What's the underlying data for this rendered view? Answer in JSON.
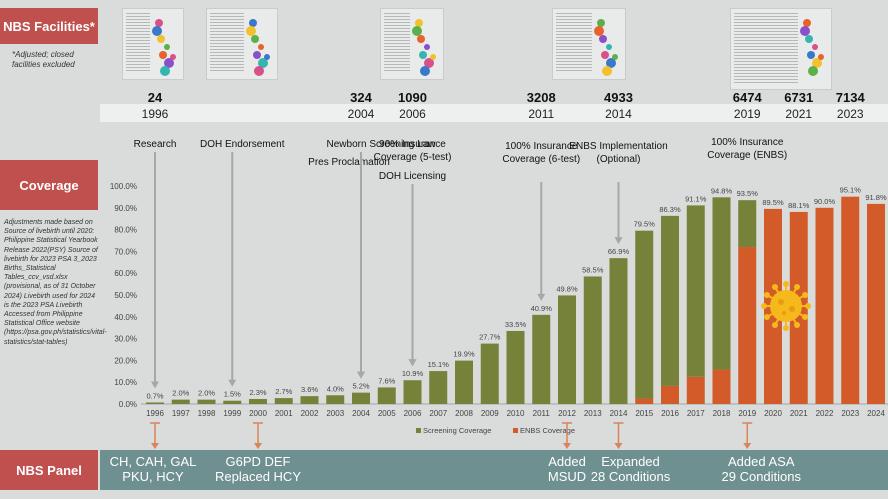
{
  "facilities_label": "NBS Facilities*",
  "facilities_note": "*Adjusted; closed facilities excluded",
  "coverage_label": "Coverage",
  "panel_label": "NBS Panel",
  "adjust_note": "Adjustments made based on Source of livebirth until 2020: Philippine Statistical Yearbook Release 2022(PSY) Source of livebirth for 2023 PSA 3_2023 Births_Statistical Tables_ccv_vsd.xlsx (provisional, as of 31 October 2024) Livebirth used for 2024 is the 2023 PSA Livebirth Accessed from Philippine Statistical Office website (https://psa.gov.ph/statistics/vital-statistics/stat-tables)",
  "facilities": [
    {
      "count": "24",
      "year": "1996"
    },
    {
      "count": "324",
      "year": "2004"
    },
    {
      "count": "1090",
      "year": "2006"
    },
    {
      "count": "3208",
      "year": "2011"
    },
    {
      "count": "4933",
      "year": "2014"
    },
    {
      "count": "6474",
      "year": "2019"
    },
    {
      "count": "6731",
      "year": "2021"
    },
    {
      "count": "7134",
      "year": "2023"
    }
  ],
  "events": [
    {
      "text": "Research",
      "year": "1996"
    },
    {
      "text": "DOH Endorsement",
      "year": "1999"
    },
    {
      "text": "Newborn Screening Law",
      "year": "2004"
    },
    {
      "text": "Pres Proclamation",
      "year": "2004"
    },
    {
      "text": "90% Insurance Coverage (5-test)",
      "year": "2006"
    },
    {
      "text": "DOH Licensing",
      "year": "2006"
    },
    {
      "text": "100% Insurance Coverage (6-test)",
      "year": "2011"
    },
    {
      "text": "ENBS Implementation (Optional)",
      "year": "2014"
    },
    {
      "text": "100% Insurance Coverage (ENBS)",
      "year": "2019"
    }
  ],
  "panel": [
    {
      "text": "CH, CAH, GAL\nPKU, HCY",
      "year": "1996"
    },
    {
      "text": "G6PD DEF\nReplaced HCY",
      "year": "2000"
    },
    {
      "text": "Added\nMSUD",
      "year": "2012"
    },
    {
      "text": "Expanded\n28 Conditions",
      "year": "2014"
    },
    {
      "text": "Added ASA\n29 Conditions",
      "year": "2019"
    }
  ],
  "colors": {
    "screening": "#76813a",
    "enbs": "#d35b29",
    "label_box": "#c0504d",
    "panel_bar": "#6f9090"
  },
  "chart_data": {
    "type": "bar",
    "stacked": true,
    "categories": [
      "1996",
      "1997",
      "1998",
      "1999",
      "2000",
      "2001",
      "2002",
      "2003",
      "2004",
      "2005",
      "2006",
      "2007",
      "2008",
      "2009",
      "2010",
      "2011",
      "2012",
      "2013",
      "2014",
      "2015",
      "2016",
      "2017",
      "2018",
      "2019",
      "2020",
      "2021",
      "2022",
      "2023",
      "2024"
    ],
    "series": [
      {
        "name": "Screening Coverage",
        "values": [
          0.7,
          2.0,
          2.0,
          1.5,
          2.3,
          2.7,
          3.6,
          4.0,
          5.2,
          7.6,
          10.9,
          15.1,
          19.9,
          27.7,
          33.5,
          40.9,
          49.8,
          58.5,
          66.9,
          77.0,
          78.0,
          78.6,
          79.0,
          21.5,
          0,
          0,
          0,
          0,
          0
        ]
      },
      {
        "name": "ENBS Coverage",
        "values": [
          0,
          0,
          0,
          0,
          0,
          0,
          0,
          0,
          0,
          0,
          0,
          0,
          0,
          0,
          0,
          0,
          0,
          0,
          0,
          2.5,
          8.3,
          12.5,
          15.8,
          72.0,
          89.5,
          88.1,
          90.0,
          95.1,
          91.8
        ]
      }
    ],
    "data_labels": [
      "0.7%",
      "2.0%",
      "2.0%",
      "1.5%",
      "2.3%",
      "2.7%",
      "3.6%",
      "4.0%",
      "5.2%",
      "7.6%",
      "10.9%",
      "15.1%",
      "19.9%",
      "27.7%",
      "33.5%",
      "40.9%",
      "49.8%",
      "58.5%",
      "66.9%",
      "79.5%",
      "86.3%",
      "91.1%",
      "94.8%",
      "93.5%",
      "89.5%",
      "88.1%",
      "90.0%",
      "95.1%",
      "91.8%"
    ],
    "totals": [
      0.7,
      2.0,
      2.0,
      1.5,
      2.3,
      2.7,
      3.6,
      4.0,
      5.2,
      7.6,
      10.9,
      15.1,
      19.9,
      27.7,
      33.5,
      40.9,
      49.8,
      58.5,
      66.9,
      79.5,
      86.3,
      91.1,
      94.8,
      93.5,
      89.5,
      88.1,
      90.0,
      95.1,
      91.8
    ],
    "yticks": [
      "0.0%",
      "10.0%",
      "20.0%",
      "30.0%",
      "40.0%",
      "50.0%",
      "60.0%",
      "70.0%",
      "80.0%",
      "90.0%",
      "100.0%"
    ],
    "ylim": [
      0,
      100
    ],
    "legend": [
      "Screening Coverage",
      "ENBS Coverage"
    ],
    "legend_position": "bottom",
    "grid": false
  },
  "thumb_icons": [
    "document-map-thumbnail",
    "document-map-thumbnail",
    "document-map-thumbnail",
    "document-map-thumbnail",
    "document-map-thumbnail"
  ],
  "virus_icon": "virus-icon"
}
